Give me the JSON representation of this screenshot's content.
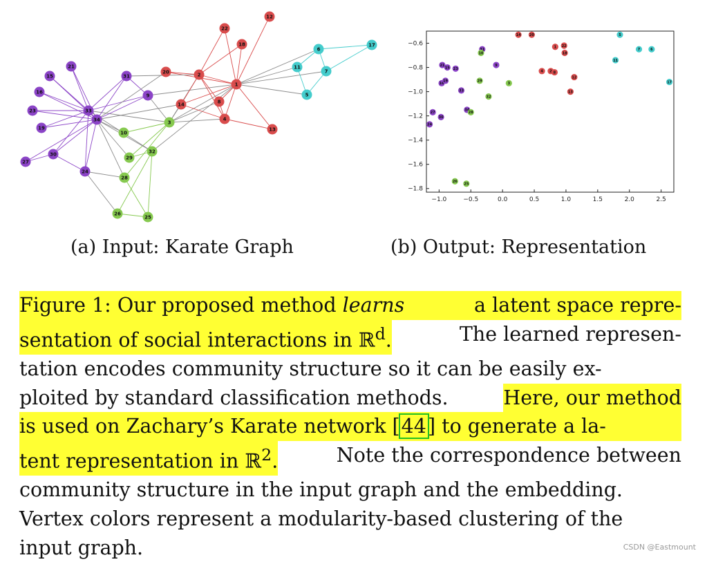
{
  "figure": {
    "subcaption_a": "(a) Input: Karate Graph",
    "subcaption_b": "(b) Output: Representation",
    "colors": {
      "purple": "#8b44c7",
      "red": "#d94c4c",
      "green": "#86c94f",
      "cyan": "#44cccc",
      "highlight": "#ffff33",
      "cite_box": "#22c022"
    }
  },
  "graph": {
    "nodes": [
      {
        "id": "1",
        "c": "red"
      },
      {
        "id": "2",
        "c": "red"
      },
      {
        "id": "3",
        "c": "green"
      },
      {
        "id": "4",
        "c": "red"
      },
      {
        "id": "5",
        "c": "cyan"
      },
      {
        "id": "6",
        "c": "cyan"
      },
      {
        "id": "7",
        "c": "cyan"
      },
      {
        "id": "8",
        "c": "red"
      },
      {
        "id": "9",
        "c": "purple"
      },
      {
        "id": "10",
        "c": "green"
      },
      {
        "id": "11",
        "c": "cyan"
      },
      {
        "id": "12",
        "c": "red"
      },
      {
        "id": "13",
        "c": "red"
      },
      {
        "id": "14",
        "c": "red"
      },
      {
        "id": "15",
        "c": "purple"
      },
      {
        "id": "16",
        "c": "purple"
      },
      {
        "id": "17",
        "c": "cyan"
      },
      {
        "id": "18",
        "c": "red"
      },
      {
        "id": "19",
        "c": "purple"
      },
      {
        "id": "20",
        "c": "red"
      },
      {
        "id": "21",
        "c": "purple"
      },
      {
        "id": "22",
        "c": "red"
      },
      {
        "id": "23",
        "c": "purple"
      },
      {
        "id": "24",
        "c": "purple"
      },
      {
        "id": "25",
        "c": "green"
      },
      {
        "id": "26",
        "c": "green"
      },
      {
        "id": "27",
        "c": "purple"
      },
      {
        "id": "28",
        "c": "green"
      },
      {
        "id": "29",
        "c": "green"
      },
      {
        "id": "30",
        "c": "purple"
      },
      {
        "id": "31",
        "c": "purple"
      },
      {
        "id": "32",
        "c": "green"
      },
      {
        "id": "33",
        "c": "purple"
      },
      {
        "id": "34",
        "c": "purple"
      }
    ],
    "edges": [
      [
        "1",
        "2"
      ],
      [
        "1",
        "3"
      ],
      [
        "1",
        "4"
      ],
      [
        "1",
        "5"
      ],
      [
        "1",
        "6"
      ],
      [
        "1",
        "7"
      ],
      [
        "1",
        "8"
      ],
      [
        "1",
        "9"
      ],
      [
        "1",
        "11"
      ],
      [
        "1",
        "12"
      ],
      [
        "1",
        "13"
      ],
      [
        "1",
        "14"
      ],
      [
        "1",
        "18"
      ],
      [
        "1",
        "20"
      ],
      [
        "1",
        "22"
      ],
      [
        "1",
        "32"
      ],
      [
        "2",
        "3"
      ],
      [
        "2",
        "4"
      ],
      [
        "2",
        "8"
      ],
      [
        "2",
        "14"
      ],
      [
        "2",
        "18"
      ],
      [
        "2",
        "20"
      ],
      [
        "2",
        "22"
      ],
      [
        "2",
        "31"
      ],
      [
        "3",
        "4"
      ],
      [
        "3",
        "8"
      ],
      [
        "3",
        "9"
      ],
      [
        "3",
        "10"
      ],
      [
        "3",
        "14"
      ],
      [
        "3",
        "28"
      ],
      [
        "3",
        "29"
      ],
      [
        "3",
        "33"
      ],
      [
        "4",
        "8"
      ],
      [
        "4",
        "13"
      ],
      [
        "4",
        "14"
      ],
      [
        "5",
        "7"
      ],
      [
        "5",
        "11"
      ],
      [
        "6",
        "7"
      ],
      [
        "6",
        "11"
      ],
      [
        "6",
        "17"
      ],
      [
        "7",
        "17"
      ],
      [
        "9",
        "31"
      ],
      [
        "9",
        "33"
      ],
      [
        "9",
        "34"
      ],
      [
        "10",
        "34"
      ],
      [
        "14",
        "34"
      ],
      [
        "15",
        "33"
      ],
      [
        "15",
        "34"
      ],
      [
        "16",
        "33"
      ],
      [
        "16",
        "34"
      ],
      [
        "19",
        "33"
      ],
      [
        "19",
        "34"
      ],
      [
        "20",
        "34"
      ],
      [
        "21",
        "33"
      ],
      [
        "21",
        "34"
      ],
      [
        "23",
        "33"
      ],
      [
        "23",
        "34"
      ],
      [
        "24",
        "26"
      ],
      [
        "24",
        "28"
      ],
      [
        "24",
        "30"
      ],
      [
        "24",
        "33"
      ],
      [
        "24",
        "34"
      ],
      [
        "25",
        "26"
      ],
      [
        "25",
        "28"
      ],
      [
        "25",
        "32"
      ],
      [
        "26",
        "32"
      ],
      [
        "27",
        "30"
      ],
      [
        "27",
        "34"
      ],
      [
        "28",
        "34"
      ],
      [
        "29",
        "32"
      ],
      [
        "29",
        "34"
      ],
      [
        "30",
        "33"
      ],
      [
        "30",
        "34"
      ],
      [
        "31",
        "33"
      ],
      [
        "31",
        "34"
      ],
      [
        "32",
        "33"
      ],
      [
        "32",
        "34"
      ],
      [
        "33",
        "34"
      ]
    ]
  },
  "chart_data": {
    "type": "scatter",
    "title": "",
    "xlabel": "",
    "ylabel": "",
    "xlim": [
      -1.2,
      2.7
    ],
    "ylim": [
      -1.83,
      -0.5
    ],
    "xticks": [
      "−1.0",
      "−0.5",
      "0.0",
      "0.5",
      "1.0",
      "1.5",
      "2.0",
      "2.5"
    ],
    "xtick_values": [
      -1.0,
      -0.5,
      0.0,
      0.5,
      1.0,
      1.5,
      2.0,
      2.5
    ],
    "yticks": [
      "−0.6",
      "−0.8",
      "−1.0",
      "−1.2",
      "−1.4",
      "−1.6",
      "−1.8"
    ],
    "ytick_values": [
      -0.6,
      -0.8,
      -1.0,
      -1.2,
      -1.4,
      -1.6,
      -1.8
    ],
    "points": [
      {
        "label": "14",
        "x": 0.25,
        "y": -0.53,
        "c": "red"
      },
      {
        "label": "20",
        "x": 0.46,
        "y": -0.53,
        "c": "red"
      },
      {
        "label": "5",
        "x": 1.85,
        "y": -0.53,
        "c": "cyan"
      },
      {
        "label": "1",
        "x": 0.83,
        "y": -0.63,
        "c": "red"
      },
      {
        "label": "22",
        "x": 0.97,
        "y": -0.62,
        "c": "red"
      },
      {
        "label": "18",
        "x": 0.98,
        "y": -0.68,
        "c": "red"
      },
      {
        "label": "7",
        "x": 2.15,
        "y": -0.65,
        "c": "cyan"
      },
      {
        "label": "6",
        "x": 2.35,
        "y": -0.65,
        "c": "cyan"
      },
      {
        "label": "31",
        "x": -0.32,
        "y": -0.65,
        "c": "purple"
      },
      {
        "label": "10",
        "x": -0.34,
        "y": -0.68,
        "c": "green"
      },
      {
        "label": "11",
        "x": 1.78,
        "y": -0.74,
        "c": "cyan"
      },
      {
        "label": "9",
        "x": -0.1,
        "y": -0.78,
        "c": "purple"
      },
      {
        "label": "21",
        "x": -0.95,
        "y": -0.78,
        "c": "purple"
      },
      {
        "label": "15",
        "x": -0.87,
        "y": -0.8,
        "c": "purple"
      },
      {
        "label": "23",
        "x": -0.74,
        "y": -0.81,
        "c": "purple"
      },
      {
        "label": "4",
        "x": 0.62,
        "y": -0.83,
        "c": "red"
      },
      {
        "label": "2",
        "x": 0.76,
        "y": -0.83,
        "c": "red"
      },
      {
        "label": "8",
        "x": 0.82,
        "y": -0.84,
        "c": "red"
      },
      {
        "label": "12",
        "x": 1.13,
        "y": -0.88,
        "c": "red"
      },
      {
        "label": "16",
        "x": -0.96,
        "y": -0.93,
        "c": "purple"
      },
      {
        "label": "19",
        "x": -0.9,
        "y": -0.91,
        "c": "purple"
      },
      {
        "label": "29",
        "x": -0.36,
        "y": -0.91,
        "c": "green"
      },
      {
        "label": "3",
        "x": 0.1,
        "y": -0.93,
        "c": "green"
      },
      {
        "label": "17",
        "x": 2.63,
        "y": -0.92,
        "c": "cyan"
      },
      {
        "label": "33",
        "x": -0.65,
        "y": -0.99,
        "c": "purple"
      },
      {
        "label": "13",
        "x": 1.07,
        "y": -1.0,
        "c": "red"
      },
      {
        "label": "32",
        "x": -0.22,
        "y": -1.04,
        "c": "green"
      },
      {
        "label": "34",
        "x": -0.56,
        "y": -1.15,
        "c": "purple"
      },
      {
        "label": "28",
        "x": -0.5,
        "y": -1.17,
        "c": "green"
      },
      {
        "label": "27",
        "x": -1.1,
        "y": -1.17,
        "c": "purple"
      },
      {
        "label": "30",
        "x": -0.97,
        "y": -1.21,
        "c": "purple"
      },
      {
        "label": "24",
        "x": -1.15,
        "y": -1.27,
        "c": "purple"
      },
      {
        "label": "26",
        "x": -0.75,
        "y": -1.74,
        "c": "green"
      },
      {
        "label": "25",
        "x": -0.57,
        "y": -1.76,
        "c": "green"
      }
    ]
  },
  "caption": {
    "l1_a": "Figure 1: Our proposed method ",
    "l1_em": "learns",
    "l1_b": " a latent space repre-",
    "l2_a": "sentation of social interactions in ℝ",
    "l2_sup": "d",
    "l2_b": ".",
    "l2_c": " The learned represen-",
    "l3": "tation encodes community structure so it can be easily ex-",
    "l4_a": "ploited by standard classification methods. ",
    "l4_b": "Here, our method",
    "l5_a": "is used on Zachary’s Karate network [",
    "l5_cite": "44",
    "l5_b": "] to generate a la-",
    "l6_a": "tent representation in ℝ",
    "l6_sup": "2",
    "l6_b": ".",
    "l6_c": " Note the correspondence between",
    "l7": "community structure in the input graph and the embedding.",
    "l8": "Vertex colors represent a modularity-based clustering of the",
    "l9": "input graph."
  },
  "watermark": "CSDN @Eastmount"
}
